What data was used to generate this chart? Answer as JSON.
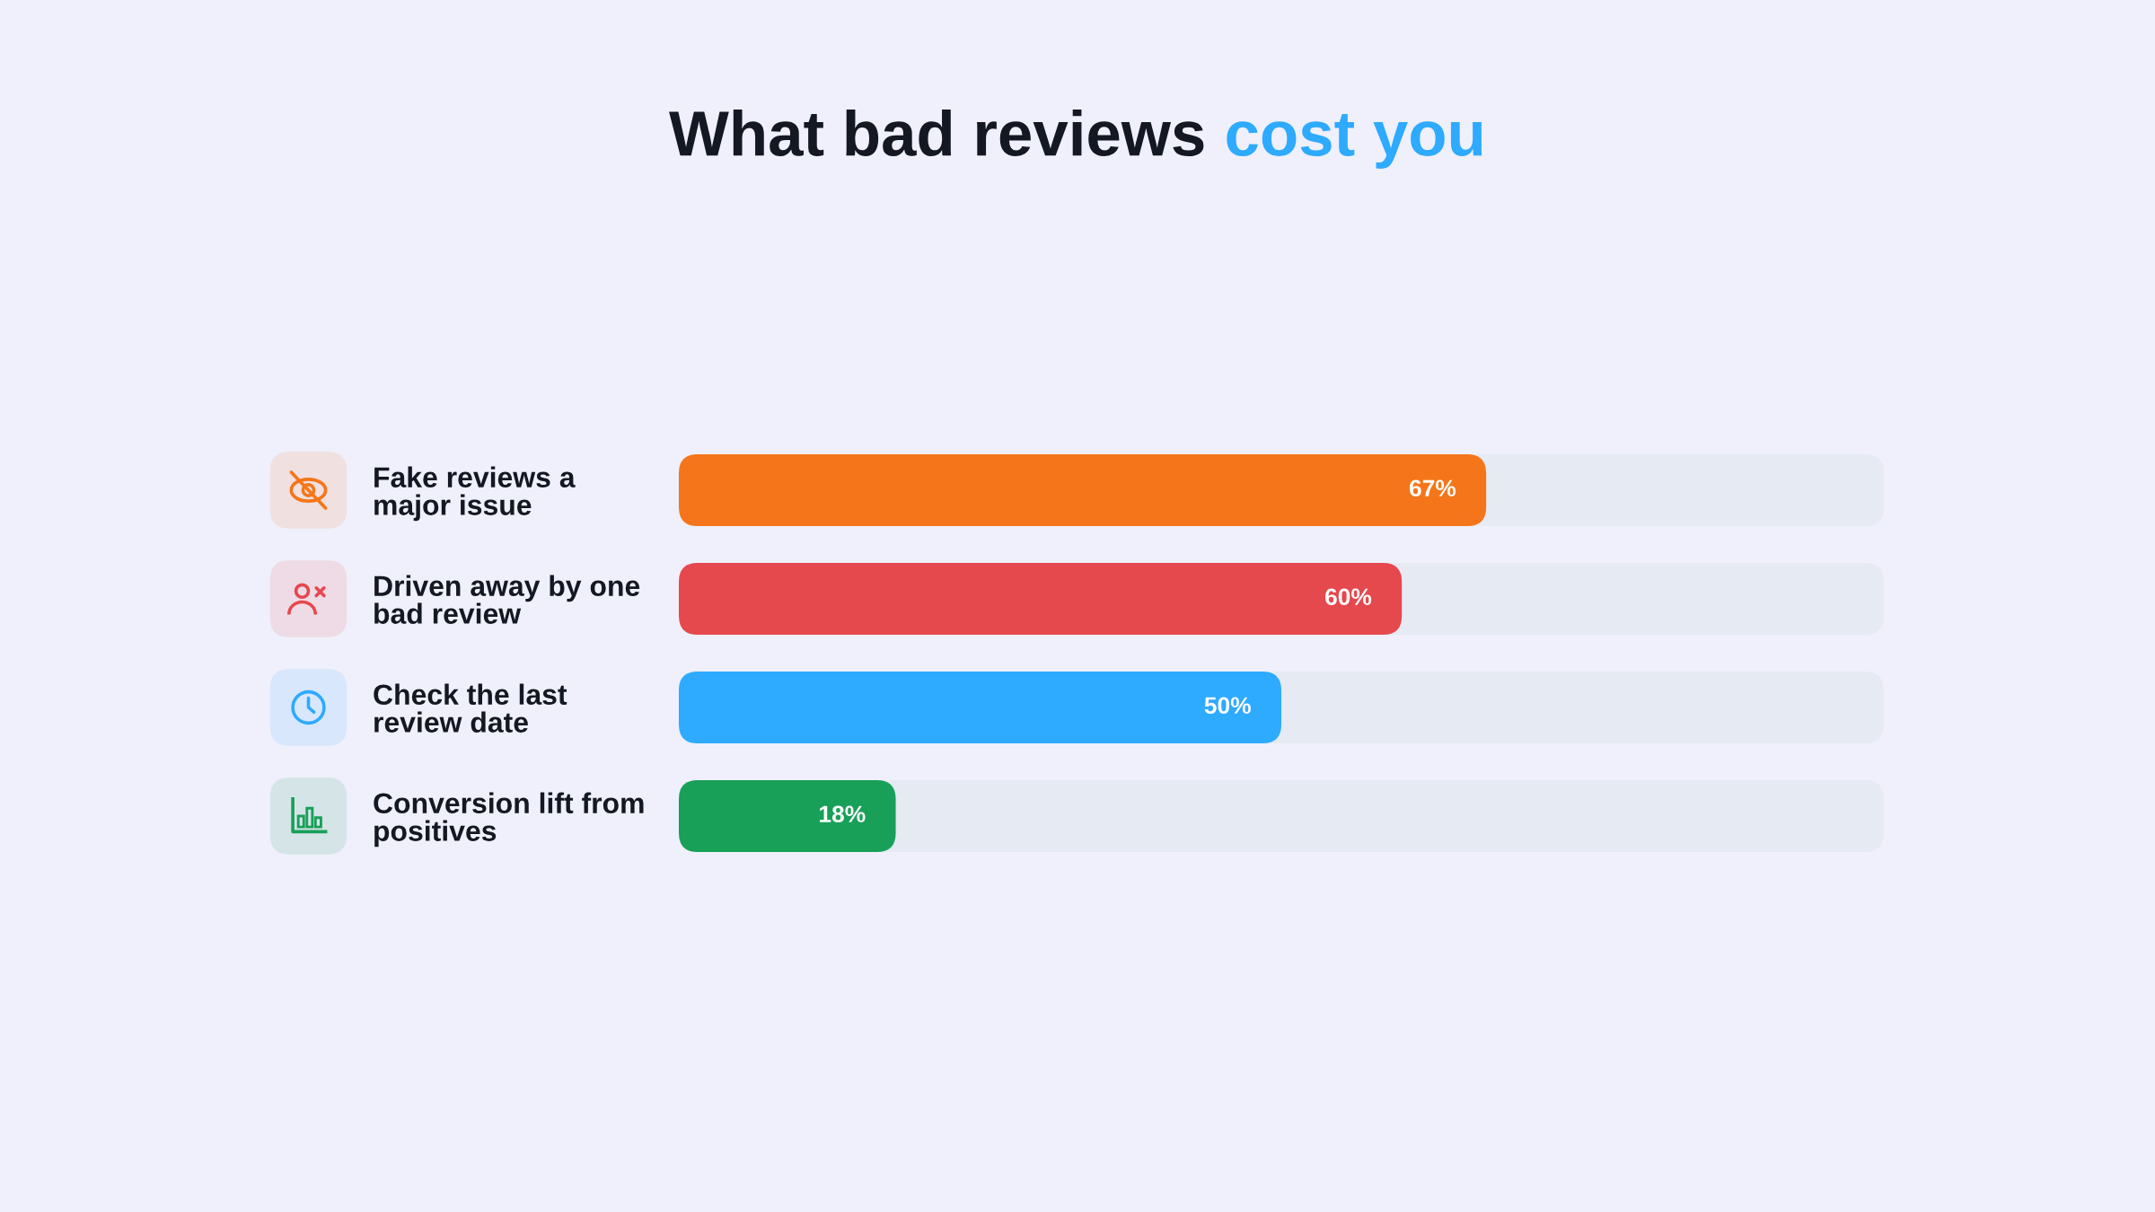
{
  "chart_data": {
    "type": "bar",
    "orientation": "horizontal",
    "title": "What bad reviews cost you",
    "categories": [
      "Fake reviews a major issue",
      "Driven away by one bad review",
      "Check the last review date",
      "Conversion lift from positives"
    ],
    "values": [
      67,
      60,
      50,
      18
    ],
    "colors": [
      "#f5761a",
      "#e5484d",
      "#2eaaff",
      "#18a058"
    ],
    "value_labels": [
      "67%",
      "60%",
      "50%",
      "18%"
    ],
    "xlim": [
      0,
      100
    ],
    "tick_labels": "y"
  }
}
